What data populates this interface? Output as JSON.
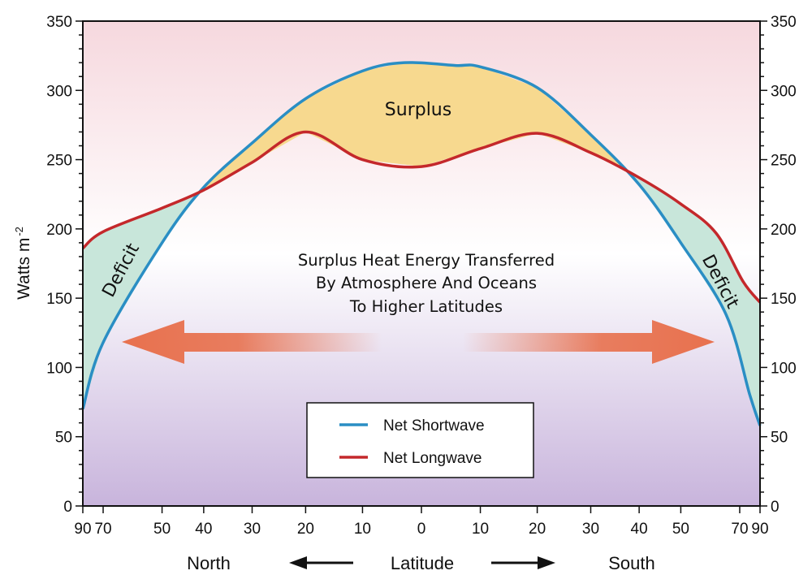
{
  "chart_data": {
    "type": "line",
    "ylabel": "Watts m",
    "ylabel_exponent": "-2",
    "ylim": [
      0,
      350
    ],
    "y_ticks": [
      "0",
      "50",
      "100",
      "150",
      "200",
      "250",
      "300",
      "350"
    ],
    "x_tick_labels": [
      "90",
      "70",
      "50",
      "40",
      "30",
      "20",
      "10",
      "0",
      "10",
      "20",
      "30",
      "40",
      "50",
      "70",
      "90"
    ],
    "x_positions": [
      -1,
      -0.94,
      -0.766,
      -0.643,
      -0.5,
      -0.342,
      -0.174,
      0,
      0.174,
      0.342,
      0.5,
      0.643,
      0.766,
      0.94,
      1
    ],
    "x_axis": {
      "north_label": "North",
      "center_label": "Latitude",
      "south_label": "South"
    },
    "x_scale": "sine of latitude",
    "series": [
      {
        "name": "Net Shortwave",
        "color": "#2a8ec4",
        "points": [
          [
            -1,
            70
          ],
          [
            -0.94,
            118
          ],
          [
            -0.766,
            190
          ],
          [
            -0.643,
            230
          ],
          [
            -0.5,
            262
          ],
          [
            -0.342,
            294
          ],
          [
            -0.174,
            314
          ],
          [
            -0.05,
            320
          ],
          [
            0.1,
            318
          ],
          [
            0.174,
            317
          ],
          [
            0.342,
            302
          ],
          [
            0.5,
            268
          ],
          [
            0.643,
            232
          ],
          [
            0.766,
            190
          ],
          [
            0.9,
            138
          ],
          [
            0.97,
            80
          ],
          [
            1,
            58
          ]
        ]
      },
      {
        "name": "Net Longwave",
        "color": "#c4282b",
        "points": [
          [
            -1,
            186
          ],
          [
            -0.94,
            198
          ],
          [
            -0.766,
            215
          ],
          [
            -0.643,
            228
          ],
          [
            -0.5,
            248
          ],
          [
            -0.342,
            270
          ],
          [
            -0.174,
            250
          ],
          [
            0,
            245
          ],
          [
            0.174,
            258
          ],
          [
            0.342,
            269
          ],
          [
            0.5,
            255
          ],
          [
            0.643,
            237
          ],
          [
            0.766,
            218
          ],
          [
            0.87,
            197
          ],
          [
            0.95,
            162
          ],
          [
            1,
            147
          ]
        ]
      }
    ],
    "region_labels": {
      "surplus": "Surplus",
      "deficit_left": "Deficit",
      "deficit_right": "Deficit"
    },
    "annotation": [
      "Surplus Heat Energy Transferred",
      "By Atmosphere And Oceans",
      "To Higher Latitudes"
    ],
    "legend_position": "bottom-center",
    "colors": {
      "surplus_fill": "#f7d98f",
      "deficit_fill": "#c8e6da",
      "arrow": "#e8714e",
      "bg_top": "#f6d8de",
      "bg_mid": "#ffffff",
      "bg_bottom": "#c8b4dc"
    }
  }
}
